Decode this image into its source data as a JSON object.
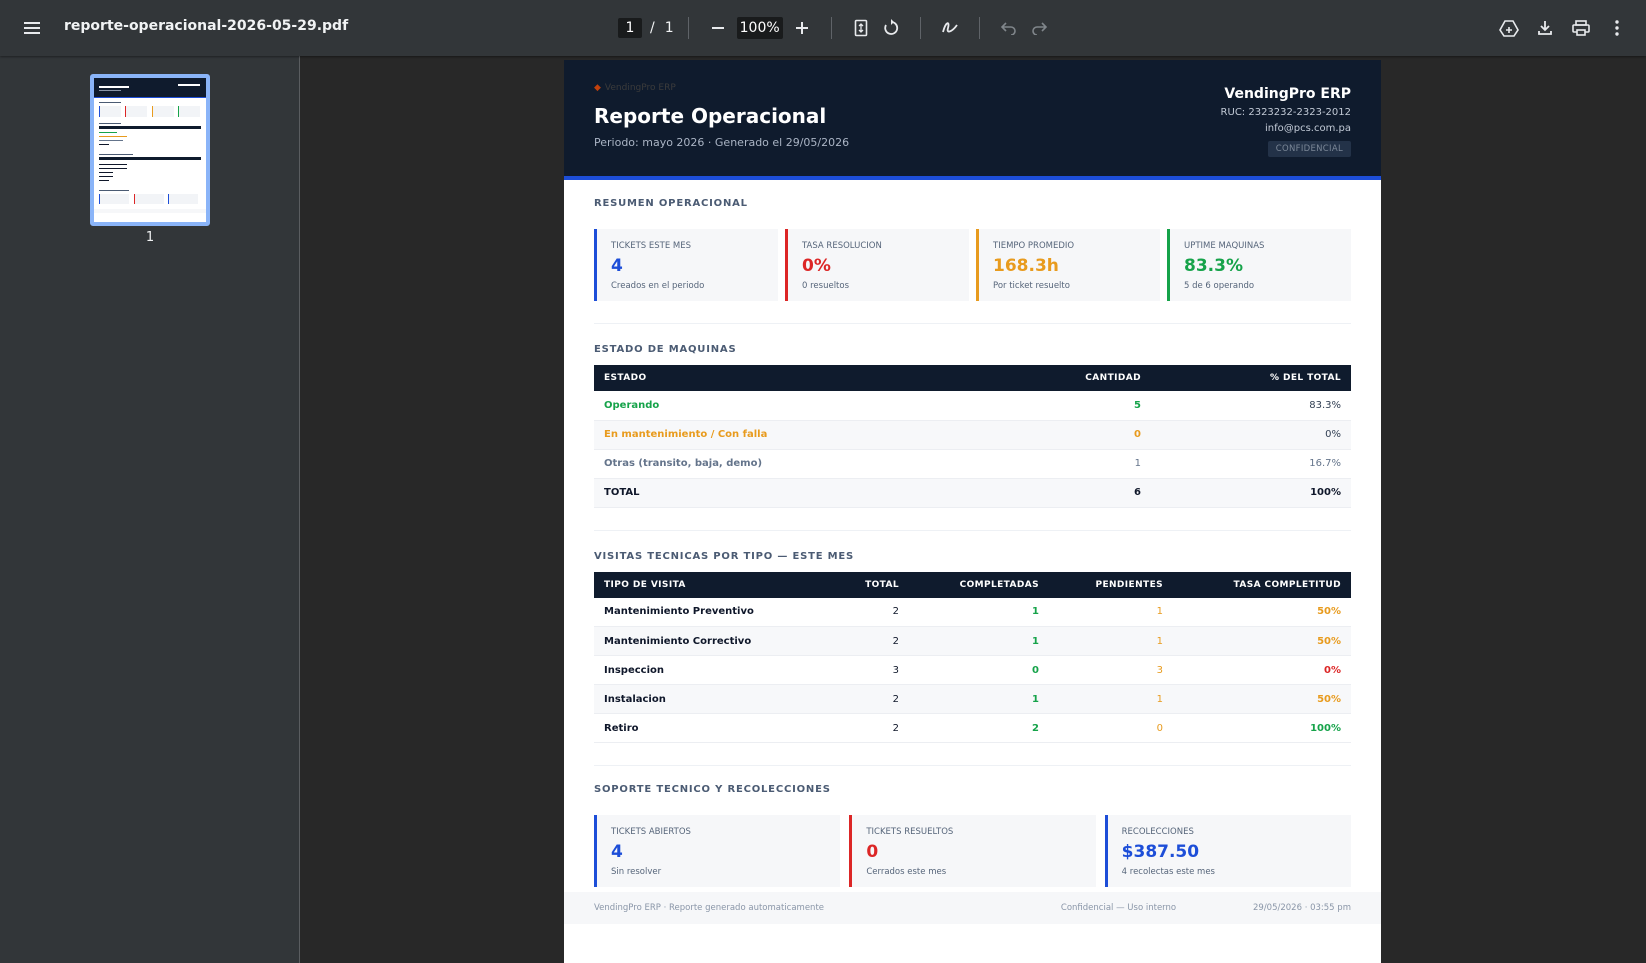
{
  "toolbar": {
    "filename": "reporte-operacional-2026-05-29.pdf",
    "page_current": "1",
    "page_sep": "/",
    "page_total": "1",
    "zoom": "100%"
  },
  "sidebar": {
    "thumb_label": "1"
  },
  "report": {
    "logo_text": "VendingPro ERP",
    "title": "Reporte Operacional",
    "subtitle": "Periodo: mayo 2026  ·  Generado el 29/05/2026",
    "company": "VendingPro ERP",
    "ruc": "RUC: 2323232-2323-2012",
    "email": "info@pcs.com.pa",
    "badge": "CONFIDENCIAL"
  },
  "summary": {
    "title": "RESUMEN OPERACIONAL",
    "cards": [
      {
        "label": "TICKETS ESTE MES",
        "value": "4",
        "sub": "Creados en el periodo",
        "color": "#1d4ed8"
      },
      {
        "label": "TASA RESOLUCION",
        "value": "0%",
        "sub": "0 resueltos",
        "color": "#dc2626"
      },
      {
        "label": "TIEMPO PROMEDIO",
        "value": "168.3h",
        "sub": "Por ticket resuelto",
        "color": "#e89b1e"
      },
      {
        "label": "UPTIME MAQUINAS",
        "value": "83.3%",
        "sub": "5 de 6 operando",
        "color": "#16a34a"
      }
    ]
  },
  "machines": {
    "title": "ESTADO DE MAQUINAS",
    "headers": [
      "ESTADO",
      "CANTIDAD",
      "% DEL TOTAL"
    ],
    "rows": [
      {
        "estado": "Operando",
        "cantidad": "5",
        "pct": "83.3%"
      },
      {
        "estado": "En mantenimiento / Con falla",
        "cantidad": "0",
        "pct": "0%"
      },
      {
        "estado": "Otras (transito, baja, demo)",
        "cantidad": "1",
        "pct": "16.7%"
      },
      {
        "estado": "TOTAL",
        "cantidad": "6",
        "pct": "100%"
      }
    ]
  },
  "visits": {
    "title": "VISITAS TECNICAS POR TIPO — ESTE MES",
    "headers": [
      "TIPO DE VISITA",
      "TOTAL",
      "COMPLETADAS",
      "PENDIENTES",
      "TASA COMPLETITUD"
    ],
    "rows": [
      {
        "tipo": "Mantenimiento Preventivo",
        "total": "2",
        "completadas": "1",
        "pendientes": "1",
        "tasa": "50%"
      },
      {
        "tipo": "Mantenimiento Correctivo",
        "total": "2",
        "completadas": "1",
        "pendientes": "1",
        "tasa": "50%"
      },
      {
        "tipo": "Inspeccion",
        "total": "3",
        "completadas": "0",
        "pendientes": "3",
        "tasa": "0%"
      },
      {
        "tipo": "Instalacion",
        "total": "2",
        "completadas": "1",
        "pendientes": "1",
        "tasa": "50%"
      },
      {
        "tipo": "Retiro",
        "total": "2",
        "completadas": "2",
        "pendientes": "0",
        "tasa": "100%"
      }
    ]
  },
  "support": {
    "title": "SOPORTE TECNICO Y RECOLECCIONES",
    "cards": [
      {
        "label": "TICKETS ABIERTOS",
        "value": "4",
        "sub": "Sin resolver",
        "color": "#1d4ed8"
      },
      {
        "label": "TICKETS RESUELTOS",
        "value": "0",
        "sub": "Cerrados este mes",
        "color": "#dc2626"
      },
      {
        "label": "RECOLECCIONES",
        "value": "$387.50",
        "sub": "4 recolectas este mes",
        "color": "#1d4ed8"
      }
    ]
  },
  "footer": {
    "left": "VendingPro ERP  ·  Reporte generado automaticamente",
    "center": "Confidencial — Uso interno",
    "right": "29/05/2026  ·  03:55 pm"
  },
  "colors": {
    "header_bg": "#0f1b2d",
    "accent_blue": "#1d4ed8",
    "green": "#16a34a",
    "orange": "#e89b1e",
    "red": "#dc2626"
  }
}
